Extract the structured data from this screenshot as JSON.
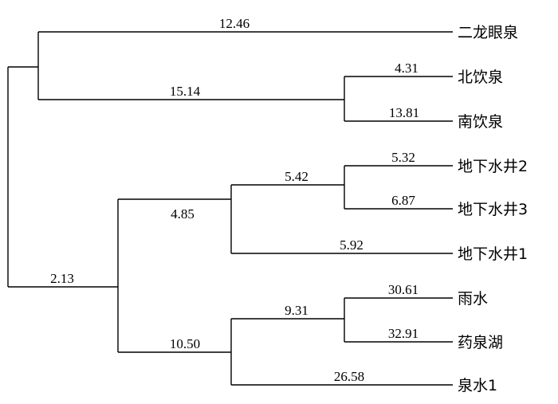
{
  "tree": {
    "branch_labels": {
      "erlong_leaf": "12.46",
      "north_south_group": "15.14",
      "beiyin_leaf": "4.31",
      "nanyin_leaf": "13.81",
      "well_group": "4.85",
      "well23_group": "5.42",
      "well2_leaf": "5.32",
      "well3_leaf": "6.87",
      "well1_leaf": "5.92",
      "root_lower": "2.13",
      "rain_lake_spring_group": "10.50",
      "rain_lake_group": "9.31",
      "rain_leaf": "30.61",
      "lake_leaf": "32.91",
      "spring1_leaf": "26.58"
    },
    "leaves": [
      "二龙眼泉",
      "北饮泉",
      "南饮泉",
      "地下水井2",
      "地下水井3",
      "地下水井1",
      "雨水",
      "药泉湖",
      "泉水1"
    ]
  }
}
